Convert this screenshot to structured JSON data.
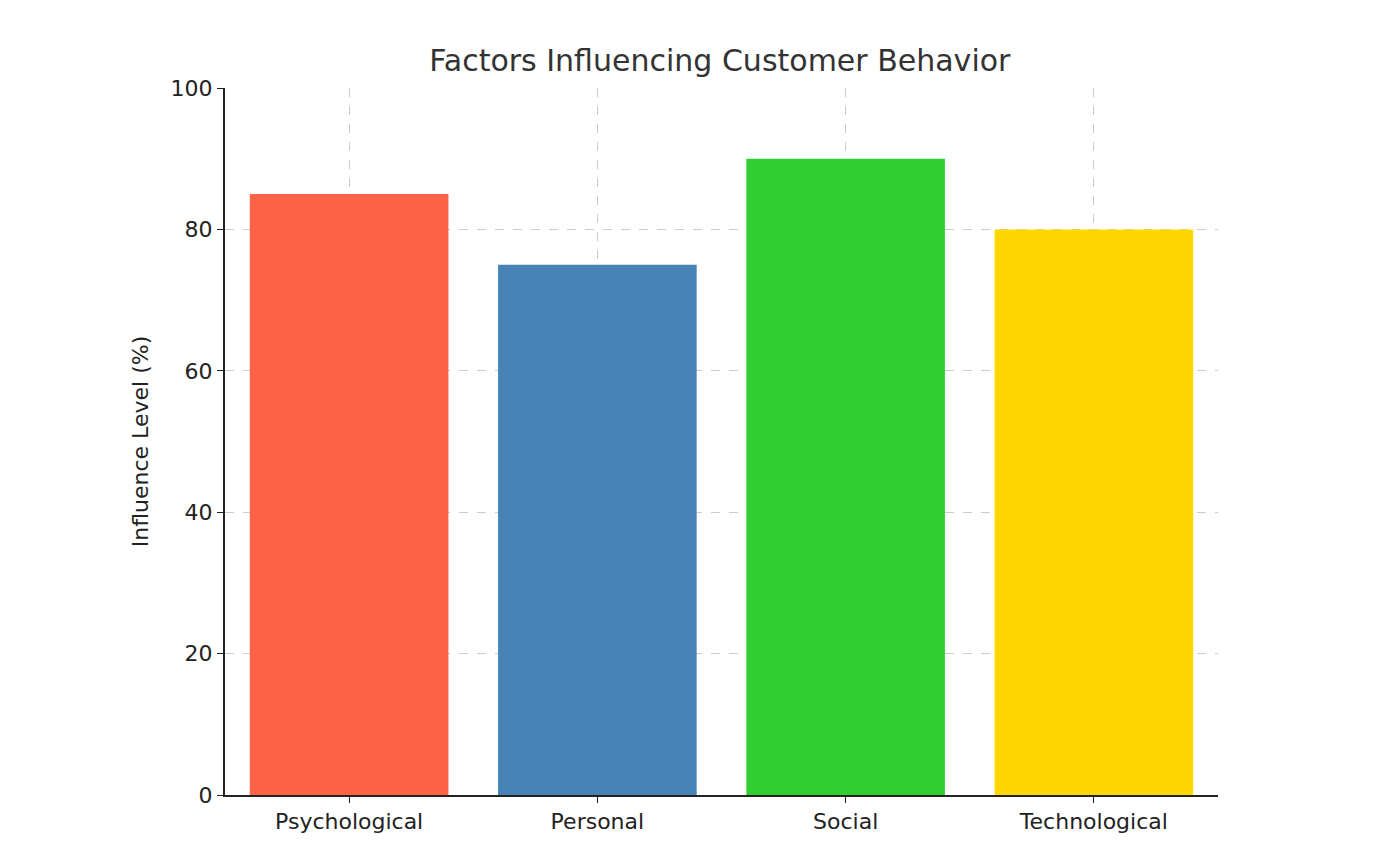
{
  "chart_data": {
    "type": "bar",
    "title": "Factors Influencing Customer Behavior",
    "y_label": "Influence Level (%)",
    "categories": [
      "Psychological",
      "Personal",
      "Social",
      "Technological"
    ],
    "values": [
      85,
      75,
      90,
      80
    ],
    "colors": [
      "#FF6347",
      "#4682B4",
      "#32CD32",
      "#FFD700"
    ],
    "ylim": [
      0,
      100
    ],
    "yticks": [
      0,
      20,
      40,
      60,
      80,
      100
    ],
    "grid": true
  }
}
